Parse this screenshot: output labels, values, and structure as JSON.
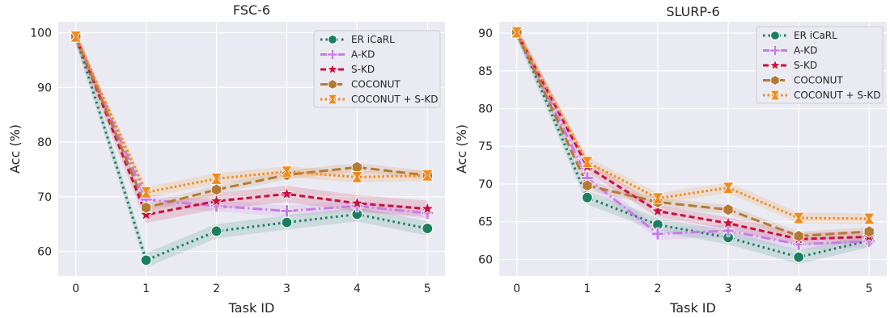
{
  "chart_data": [
    {
      "type": "line",
      "title": "FSC-6",
      "xlabel": "Task ID",
      "ylabel": "Acc (%)",
      "x": [
        0,
        1,
        2,
        3,
        4,
        5
      ],
      "xlim": [
        -0.25,
        5.25
      ],
      "ylim": [
        55.5,
        102
      ],
      "yticks": [
        60,
        70,
        80,
        90,
        100
      ],
      "grid": true,
      "legend_position": "top-right",
      "series": [
        {
          "name": "ER iCaRL",
          "values": [
            99.3,
            58.4,
            63.7,
            65.3,
            66.8,
            64.2
          ],
          "band": 1.3,
          "color": "#1b7f5f",
          "marker": "circle",
          "dash": "2.5 4"
        },
        {
          "name": "A-KD",
          "values": [
            99.3,
            69.5,
            68.3,
            67.4,
            68.3,
            67.0
          ],
          "band": 1.0,
          "color": "#c77ce6",
          "marker": "plus",
          "dash": "12 4 2 4"
        },
        {
          "name": "S-KD",
          "values": [
            99.3,
            66.7,
            69.2,
            70.5,
            68.8,
            67.8
          ],
          "band": 1.5,
          "color": "#c8103e",
          "marker": "star",
          "dash": "7 4"
        },
        {
          "name": "COCONUT",
          "values": [
            99.3,
            68.0,
            71.3,
            74.0,
            75.4,
            73.9
          ],
          "band": 0.8,
          "color": "#b47a35",
          "marker": "hexagon",
          "dash": "11 5"
        },
        {
          "name": "COCONUT + S-KD",
          "values": [
            99.3,
            70.8,
            73.3,
            74.6,
            73.6,
            73.9
          ],
          "band": 1.0,
          "color": "#f28b1c",
          "marker": "bowtie",
          "dash": "2.5 3"
        }
      ]
    },
    {
      "type": "line",
      "title": "SLURP-6",
      "xlabel": "Task ID",
      "ylabel": "Acc (%)",
      "x": [
        0,
        1,
        2,
        3,
        4,
        5
      ],
      "xlim": [
        -0.25,
        5.25
      ],
      "ylim": [
        57.8,
        91.5
      ],
      "yticks": [
        60,
        65,
        70,
        75,
        80,
        85,
        90
      ],
      "grid": true,
      "legend_position": "top-right",
      "series": [
        {
          "name": "ER iCaRL",
          "values": [
            90.1,
            68.2,
            64.6,
            62.9,
            60.3,
            62.5
          ],
          "band": 0.9,
          "color": "#1b7f5f",
          "marker": "circle",
          "dash": "2.5 4"
        },
        {
          "name": "A-KD",
          "values": [
            90.1,
            70.8,
            63.4,
            63.8,
            62.0,
            62.4
          ],
          "band": 0.8,
          "color": "#c77ce6",
          "marker": "plus",
          "dash": "12 4 2 4"
        },
        {
          "name": "S-KD",
          "values": [
            90.1,
            72.3,
            66.4,
            64.8,
            62.7,
            63.0
          ],
          "band": 0.8,
          "color": "#c8103e",
          "marker": "star",
          "dash": "7 4"
        },
        {
          "name": "COCONUT",
          "values": [
            90.1,
            69.8,
            67.6,
            66.6,
            63.1,
            63.7
          ],
          "band": 0.6,
          "color": "#b47a35",
          "marker": "hexagon",
          "dash": "11 5"
        },
        {
          "name": "COCONUT + S-KD",
          "values": [
            90.1,
            72.9,
            68.1,
            69.5,
            65.5,
            65.4
          ],
          "band": 0.7,
          "color": "#f28b1c",
          "marker": "bowtie",
          "dash": "2.5 3"
        }
      ]
    }
  ]
}
